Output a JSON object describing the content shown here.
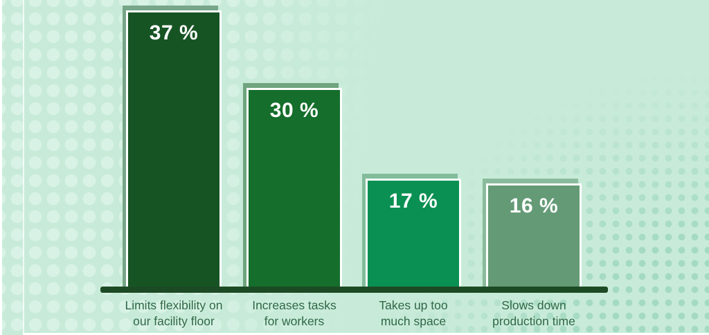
{
  "page": {
    "background_color": "#c8ebd9",
    "frame_line_color": "#ffffff"
  },
  "chart_data": {
    "type": "bar",
    "title": "",
    "xlabel": "",
    "ylabel": "",
    "unit": "%",
    "grid": false,
    "legend": "none",
    "categories": [
      "Limits flexibility on our facility floor",
      "Increases tasks for workers",
      "Takes up too much space",
      "Slows down production time"
    ],
    "values": [
      37,
      30,
      17,
      16
    ],
    "value_labels": [
      "37 %",
      "30 %",
      "17 %",
      "16 %"
    ],
    "bars": [
      {
        "value": 37,
        "value_label": "37 %",
        "label_line1": "Limits flexibility on",
        "label_line2": "our facility floor",
        "bar_color": "#175424",
        "shadow_color": "#77a688"
      },
      {
        "value": 30,
        "value_label": "30 %",
        "label_line1": "Increases tasks",
        "label_line2": "for workers",
        "bar_color": "#156e2b",
        "shadow_color": "#6fa47f"
      },
      {
        "value": 17,
        "value_label": "17 %",
        "label_line1": "Takes up too",
        "label_line2": "much space",
        "bar_color": "#0a9052",
        "shadow_color": "#82bc9b"
      },
      {
        "value": 16,
        "value_label": "16 %",
        "label_line1": "Slows down",
        "label_line2": "production time",
        "bar_color": "#649b76",
        "shadow_color": "#8abb9c"
      }
    ],
    "colors": {
      "baseline": "#1c4a24",
      "bar_border": "#ffffff",
      "value_text": "#ffffff",
      "category_text": "#2f6746",
      "dots_left": "#d8f2e5",
      "dots_right": "#a5dac2"
    }
  }
}
